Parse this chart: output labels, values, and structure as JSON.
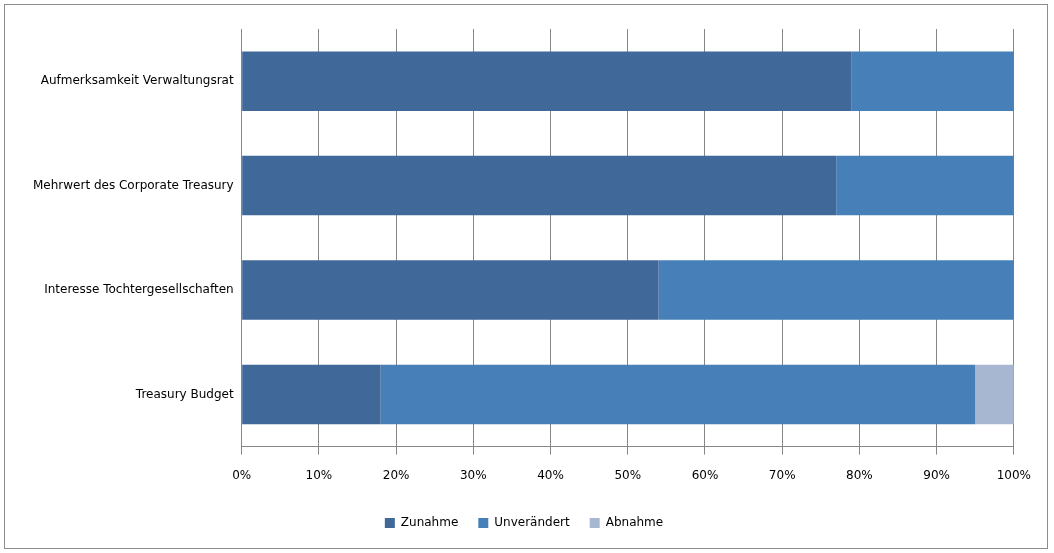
{
  "chart_data": {
    "type": "bar",
    "orientation": "horizontal",
    "stacked": true,
    "categories": [
      "Aufmerksamkeit Verwaltungsrat",
      "Mehrwert des Corporate Treasury",
      "Interesse Tochtergesellschaften",
      "Treasury Budget"
    ],
    "series": [
      {
        "name": "Zunahme",
        "color": "#406899",
        "values": [
          79,
          77,
          54,
          18
        ]
      },
      {
        "name": "Unverändert",
        "color": "#4780b8",
        "values": [
          21,
          23,
          46,
          77
        ]
      },
      {
        "name": "Abnahme",
        "color": "#a7b7d1",
        "values": [
          0,
          0,
          0,
          5
        ]
      }
    ],
    "xlim": [
      0,
      100
    ],
    "xticks": [
      {
        "value": 0,
        "label": "0%"
      },
      {
        "value": 10,
        "label": "10%"
      },
      {
        "value": 20,
        "label": "20%"
      },
      {
        "value": 30,
        "label": "30%"
      },
      {
        "value": 40,
        "label": "40%"
      },
      {
        "value": 50,
        "label": "50%"
      },
      {
        "value": 60,
        "label": "60%"
      },
      {
        "value": 70,
        "label": "70%"
      },
      {
        "value": 80,
        "label": "80%"
      },
      {
        "value": 90,
        "label": "90%"
      },
      {
        "value": 100,
        "label": "100%"
      }
    ],
    "grid": "x",
    "legend": "bottom"
  }
}
